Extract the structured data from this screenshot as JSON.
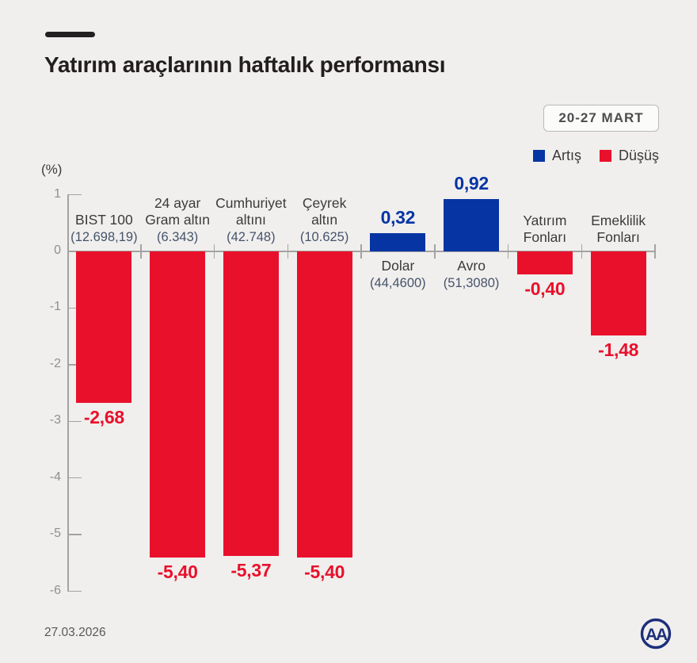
{
  "header": {
    "title": "Yatırım araçlarının haftalık performansı",
    "date_badge": "20-27 MART"
  },
  "legend": {
    "up_label": "Artış",
    "down_label": "Düşüş"
  },
  "colors": {
    "up": "#0634a3",
    "down": "#e9102c",
    "background": "#f0efed",
    "axis": "#a3a3a1",
    "category_text": "#3b3b3b",
    "detail_text": "#46536b"
  },
  "chart_data": {
    "type": "bar",
    "title": "Yatırım araçlarının haftalık performansı",
    "unit_label": "(%)",
    "xlabel": "",
    "ylabel": "(%)",
    "ylim": [
      -6,
      1
    ],
    "yticks": [
      1,
      0,
      -1,
      -2,
      -3,
      -4,
      -5,
      -6
    ],
    "grid": false,
    "legend_position": "top-right",
    "categories": [
      "BIST 100",
      "24 ayar Gram altın",
      "Cumhuriyet altını",
      "Çeyrek altın",
      "Dolar",
      "Avro",
      "Yatırım Fonları",
      "Emeklilik Fonları"
    ],
    "items": [
      {
        "name_lines": [
          "BIST 100"
        ],
        "detail": "(12.698,19)",
        "value": -2.68,
        "value_label": "-2,68",
        "direction": "down"
      },
      {
        "name_lines": [
          "24 ayar",
          "Gram altın"
        ],
        "detail": "(6.343)",
        "value": -5.4,
        "value_label": "-5,40",
        "direction": "down"
      },
      {
        "name_lines": [
          "Cumhuriyet",
          "altını"
        ],
        "detail": "(42.748)",
        "value": -5.37,
        "value_label": "-5,37",
        "direction": "down"
      },
      {
        "name_lines": [
          "Çeyrek",
          "altın"
        ],
        "detail": "(10.625)",
        "value": -5.4,
        "value_label": "-5,40",
        "direction": "down"
      },
      {
        "name_lines": [
          "Dolar"
        ],
        "detail": "(44,4600)",
        "value": 0.32,
        "value_label": "0,32",
        "direction": "up"
      },
      {
        "name_lines": [
          "Avro"
        ],
        "detail": "(51,3080)",
        "value": 0.92,
        "value_label": "0,92",
        "direction": "up"
      },
      {
        "name_lines": [
          "Yatırım",
          "Fonları"
        ],
        "detail": "",
        "value": -0.4,
        "value_label": "-0,40",
        "direction": "down"
      },
      {
        "name_lines": [
          "Emeklilik",
          "Fonları"
        ],
        "detail": "",
        "value": -1.48,
        "value_label": "-1,48",
        "direction": "down"
      }
    ]
  },
  "footer": {
    "date": "27.03.2026",
    "logo_text": "AA"
  }
}
